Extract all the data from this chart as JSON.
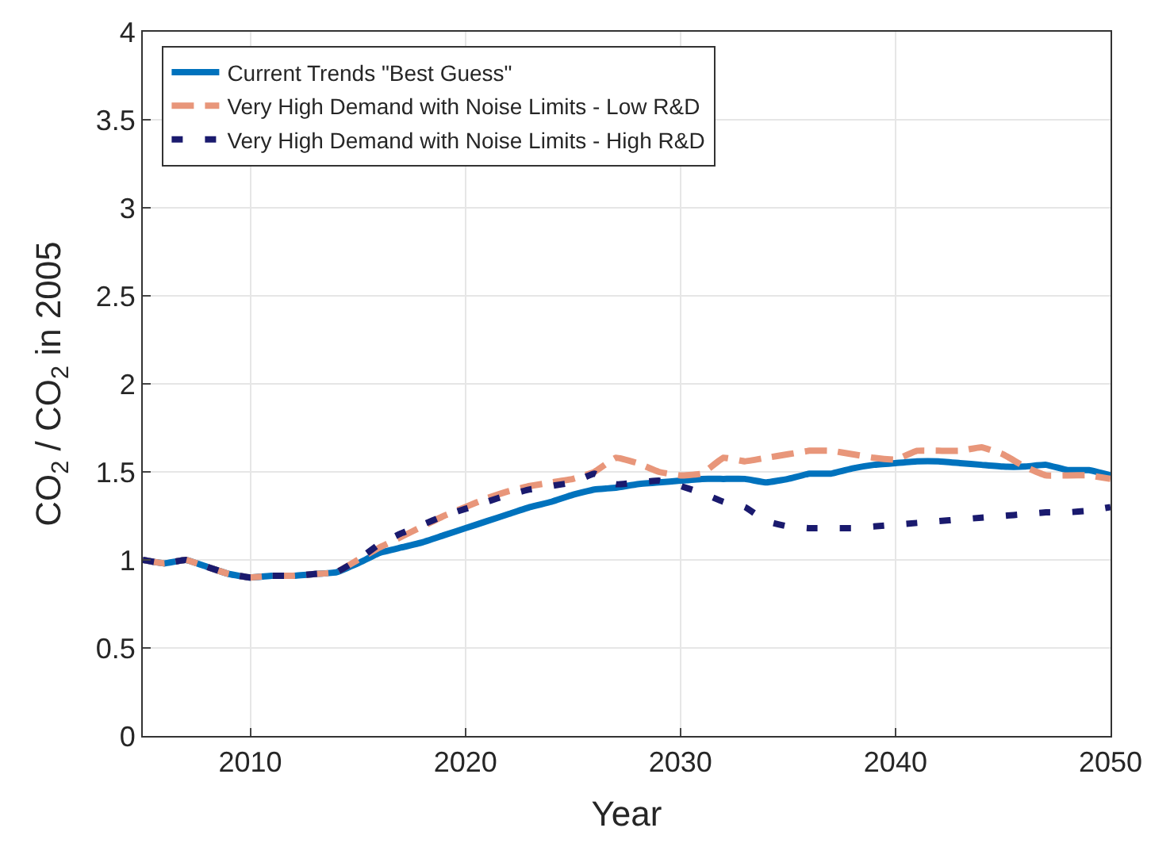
{
  "chart_data": {
    "type": "line",
    "xlabel": "Year",
    "ylabel": "CO$_{2}$ / CO$_{2}$ in 2005",
    "x": [
      2005,
      2006,
      2007,
      2008,
      2009,
      2010,
      2011,
      2012,
      2013,
      2014,
      2015,
      2016,
      2017,
      2018,
      2019,
      2020,
      2021,
      2022,
      2023,
      2024,
      2025,
      2026,
      2027,
      2028,
      2029,
      2030,
      2031,
      2032,
      2033,
      2034,
      2035,
      2036,
      2037,
      2038,
      2039,
      2040,
      2041,
      2042,
      2043,
      2044,
      2045,
      2046,
      2047,
      2048,
      2049,
      2050
    ],
    "series": [
      {
        "name": "Current Trends \"Best Guess\"",
        "color": "#0072bd",
        "line_style": "solid",
        "values": [
          1.0,
          0.98,
          1.0,
          0.96,
          0.92,
          0.9,
          0.91,
          0.91,
          0.92,
          0.93,
          0.98,
          1.04,
          1.07,
          1.1,
          1.14,
          1.18,
          1.22,
          1.26,
          1.3,
          1.33,
          1.37,
          1.4,
          1.41,
          1.43,
          1.44,
          1.45,
          1.46,
          1.46,
          1.46,
          1.44,
          1.46,
          1.49,
          1.49,
          1.52,
          1.54,
          1.55,
          1.56,
          1.56,
          1.55,
          1.54,
          1.53,
          1.53,
          1.54,
          1.51,
          1.51,
          1.48
        ]
      },
      {
        "name": "Very High Demand with Noise Limits - Low R&D",
        "color": "#e8967a",
        "line_style": "dashed",
        "values": [
          1.0,
          0.98,
          1.0,
          0.96,
          0.92,
          0.9,
          0.91,
          0.91,
          0.92,
          0.93,
          1.0,
          1.07,
          1.13,
          1.19,
          1.25,
          1.3,
          1.35,
          1.39,
          1.42,
          1.44,
          1.46,
          1.5,
          1.58,
          1.55,
          1.5,
          1.48,
          1.49,
          1.58,
          1.56,
          1.58,
          1.6,
          1.62,
          1.62,
          1.6,
          1.58,
          1.57,
          1.62,
          1.62,
          1.62,
          1.64,
          1.6,
          1.53,
          1.48,
          1.48,
          1.48,
          1.46
        ]
      },
      {
        "name": "Very High Demand with Noise Limits - High R&D",
        "color": "#1a1a6e",
        "line_style": "dashed",
        "values": [
          1.0,
          0.98,
          1.0,
          0.96,
          0.92,
          0.9,
          0.91,
          0.91,
          0.92,
          0.93,
          1.0,
          1.09,
          1.15,
          1.2,
          1.25,
          1.29,
          1.33,
          1.37,
          1.4,
          1.42,
          1.44,
          1.49,
          1.43,
          1.44,
          1.45,
          1.42,
          1.38,
          1.33,
          1.3,
          1.22,
          1.19,
          1.18,
          1.18,
          1.18,
          1.19,
          1.2,
          1.21,
          1.22,
          1.23,
          1.24,
          1.25,
          1.26,
          1.27,
          1.27,
          1.28,
          1.3
        ]
      }
    ],
    "xlim": [
      2005,
      2050
    ],
    "xticks": [
      2010,
      2020,
      2030,
      2040,
      2050
    ],
    "ylim": [
      0,
      4
    ],
    "yticks": [
      0,
      0.5,
      1,
      1.5,
      2,
      2.5,
      3,
      3.5,
      4
    ],
    "grid": true,
    "legend": "top left"
  }
}
